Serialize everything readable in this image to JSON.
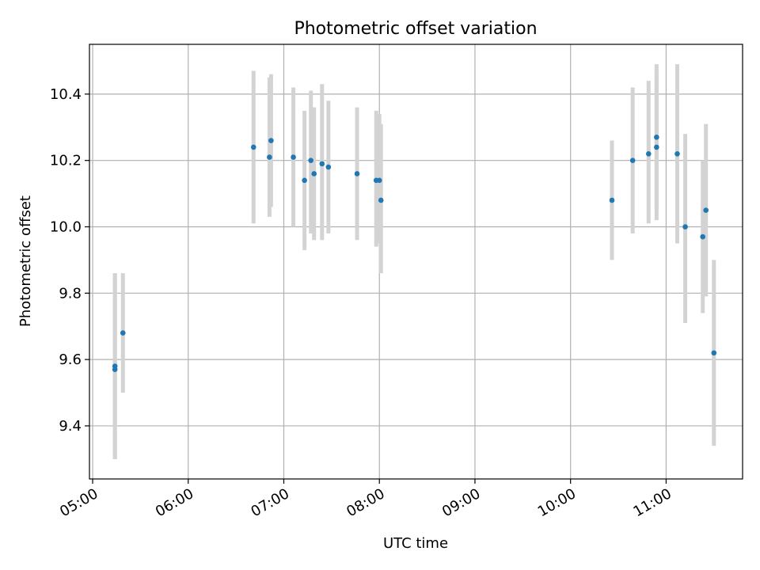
{
  "chart_data": {
    "type": "scatter",
    "title": "Photometric offset variation",
    "xlabel": "UTC time",
    "ylabel": "Photometric offset",
    "x_axis": "time (HH:MM UTC)",
    "xlim": [
      "04:58",
      "11:48"
    ],
    "ylim": [
      9.24,
      10.55
    ],
    "xticks": [
      "05:00",
      "06:00",
      "07:00",
      "08:00",
      "09:00",
      "10:00",
      "11:00"
    ],
    "yticks": [
      9.4,
      9.6,
      9.8,
      10.0,
      10.2,
      10.4
    ],
    "grid": true,
    "marker_color": "#1f77b4",
    "errorbar_color": "#d3d3d3",
    "points": [
      {
        "x": "05:14",
        "y": 9.57,
        "lo": 9.3,
        "hi": 9.86
      },
      {
        "x": "05:14",
        "y": 9.58,
        "lo": 9.3,
        "hi": 9.86
      },
      {
        "x": "05:19",
        "y": 9.68,
        "lo": 9.5,
        "hi": 9.86
      },
      {
        "x": "06:41",
        "y": 10.24,
        "lo": 10.01,
        "hi": 10.47
      },
      {
        "x": "06:51",
        "y": 10.21,
        "lo": 10.03,
        "hi": 10.45
      },
      {
        "x": "06:52",
        "y": 10.26,
        "lo": 10.06,
        "hi": 10.46
      },
      {
        "x": "07:06",
        "y": 10.21,
        "lo": 10.0,
        "hi": 10.42
      },
      {
        "x": "07:13",
        "y": 10.14,
        "lo": 9.93,
        "hi": 10.35
      },
      {
        "x": "07:17",
        "y": 10.2,
        "lo": 9.98,
        "hi": 10.41
      },
      {
        "x": "07:19",
        "y": 10.16,
        "lo": 9.96,
        "hi": 10.36
      },
      {
        "x": "07:24",
        "y": 10.19,
        "lo": 9.96,
        "hi": 10.43
      },
      {
        "x": "07:28",
        "y": 10.18,
        "lo": 9.98,
        "hi": 10.38
      },
      {
        "x": "07:46",
        "y": 10.16,
        "lo": 9.96,
        "hi": 10.36
      },
      {
        "x": "07:58",
        "y": 10.14,
        "lo": 9.94,
        "hi": 10.35
      },
      {
        "x": "08:00",
        "y": 10.14,
        "lo": 9.95,
        "hi": 10.34
      },
      {
        "x": "08:01",
        "y": 10.08,
        "lo": 9.86,
        "hi": 10.31
      },
      {
        "x": "10:26",
        "y": 10.08,
        "lo": 9.9,
        "hi": 10.26
      },
      {
        "x": "10:39",
        "y": 10.2,
        "lo": 9.98,
        "hi": 10.42
      },
      {
        "x": "10:49",
        "y": 10.22,
        "lo": 10.01,
        "hi": 10.44
      },
      {
        "x": "10:54",
        "y": 10.27,
        "lo": 10.05,
        "hi": 10.49
      },
      {
        "x": "10:54",
        "y": 10.24,
        "lo": 10.02,
        "hi": 10.47
      },
      {
        "x": "11:07",
        "y": 10.22,
        "lo": 9.95,
        "hi": 10.49
      },
      {
        "x": "11:12",
        "y": 10.0,
        "lo": 9.71,
        "hi": 10.28
      },
      {
        "x": "11:23",
        "y": 9.97,
        "lo": 9.74,
        "hi": 10.2
      },
      {
        "x": "11:25",
        "y": 10.05,
        "lo": 9.79,
        "hi": 10.31
      },
      {
        "x": "11:30",
        "y": 9.62,
        "lo": 9.34,
        "hi": 9.9
      }
    ]
  }
}
